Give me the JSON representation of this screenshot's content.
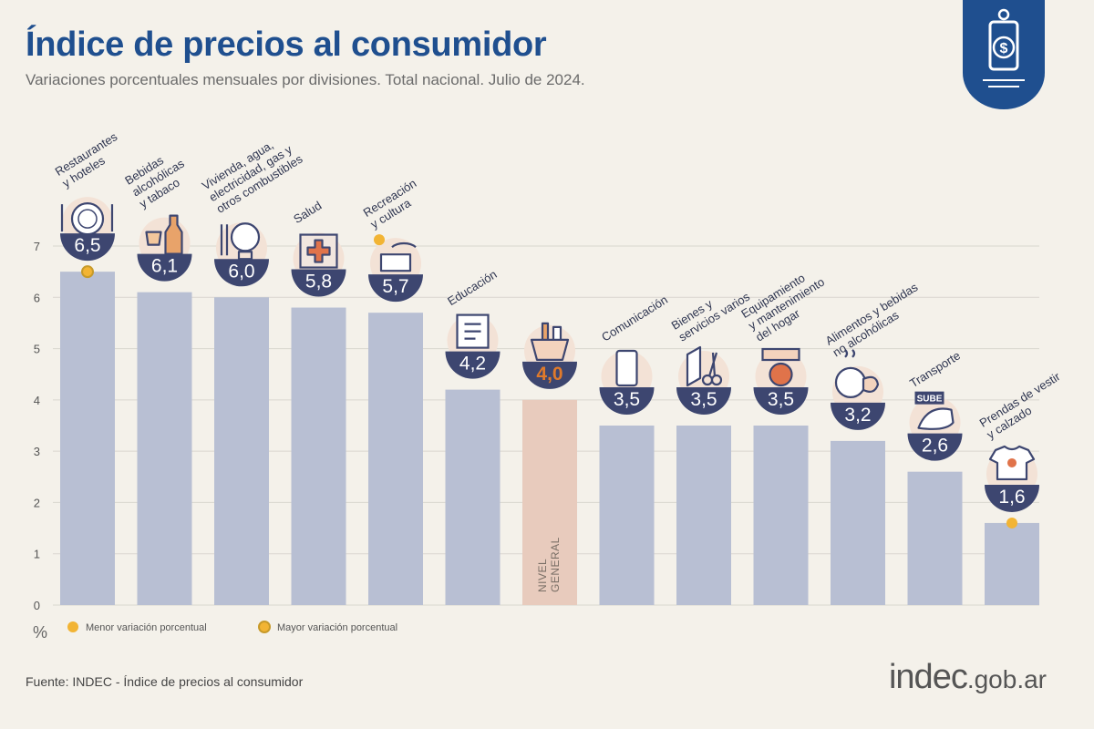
{
  "header": {
    "title": "Índice de precios al consumidor",
    "subtitle": "Variaciones porcentuales mensuales por divisiones. Total nacional. Julio de 2024."
  },
  "footer": {
    "source": "Fuente: INDEC - Índice de precios al consumidor",
    "logo_main": "indec",
    "logo_domain": ".gob.ar"
  },
  "colors": {
    "bar": "#b8bfd3",
    "bar_general": "#e8cbbd",
    "bubble": "#3d4670",
    "value_general": "#e07a2b",
    "title": "#1f4f8f",
    "marker": "#f2b434"
  },
  "chart_data": {
    "type": "bar",
    "title": "",
    "xlabel": "",
    "ylabel": "%",
    "ylim": [
      0,
      7
    ],
    "yticks": [
      0,
      1,
      2,
      3,
      4,
      5,
      6,
      7
    ],
    "grid": true,
    "categories": [
      "Restaurantes y hoteles",
      "Bebidas alcohólicas y tabaco",
      "Vivienda, agua, electricidad, gas y otros combustibles",
      "Salud",
      "Recreación y cultura",
      "Educación",
      "Nivel general",
      "Comunicación",
      "Bienes y servicios varios",
      "Equipamiento y mantenimiento del hogar",
      "Alimentos y bebidas no alcohólicas",
      "Transporte",
      "Prendas de vestir y calzado"
    ],
    "category_label_lines": [
      [
        "Restaurantes",
        "y hoteles"
      ],
      [
        "Bebidas",
        "alcohólicas",
        "y tabaco"
      ],
      [
        "Vivienda, agua,",
        "electricidad, gas y",
        "otros combustibles"
      ],
      [
        "Salud"
      ],
      [
        "Recreación",
        "y cultura"
      ],
      [
        "Educación"
      ],
      [
        "NIVEL",
        "GENERAL"
      ],
      [
        "Comunicación"
      ],
      [
        "Bienes y",
        "servicios varios"
      ],
      [
        "Equipamiento",
        "y mantenimiento",
        "del hogar"
      ],
      [
        "Alimentos y bebidas",
        "no alcohólicas"
      ],
      [
        "Transporte"
      ],
      [
        "Prendas de vestir",
        "y calzado"
      ]
    ],
    "values": [
      6.5,
      6.1,
      6.0,
      5.8,
      5.7,
      4.2,
      4.0,
      3.5,
      3.5,
      3.5,
      3.2,
      2.6,
      1.6
    ],
    "value_labels": [
      "6,5",
      "6,1",
      "6,0",
      "5,8",
      "5,7",
      "4,2",
      "4,0",
      "3,5",
      "3,5",
      "3,5",
      "3,2",
      "2,6",
      "1,6"
    ],
    "icons": [
      "plate-cutlery-icon",
      "bottle-glass-icon",
      "lightbulb-icon",
      "medical-cross-icon",
      "ticket-icon",
      "notebook-icon",
      "shopping-bag-icon",
      "smartphone-icon",
      "comb-scissors-icon",
      "oven-icon",
      "chicken-food-icon",
      "sube-card-icon",
      "tshirt-shoe-icon"
    ],
    "highlight_index": 6,
    "max_index": 0,
    "min_index": 12,
    "legend": [
      {
        "label": "Menor variación porcentual",
        "marker": "solid"
      },
      {
        "label": "Mayor variación porcentual",
        "marker": "ring"
      }
    ]
  }
}
